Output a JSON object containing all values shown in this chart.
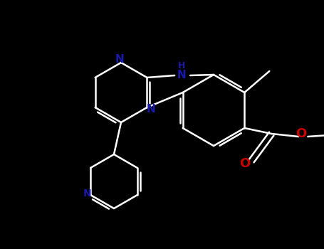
{
  "bg_color": "#000000",
  "bond_color": "#ffffff",
  "N_color": "#1a1aaa",
  "O_color": "#cc0000",
  "lw": 1.8,
  "figsize": [
    4.55,
    3.5
  ],
  "dpi": 100,
  "xlim": [
    0,
    455
  ],
  "ylim": [
    0,
    350
  ]
}
